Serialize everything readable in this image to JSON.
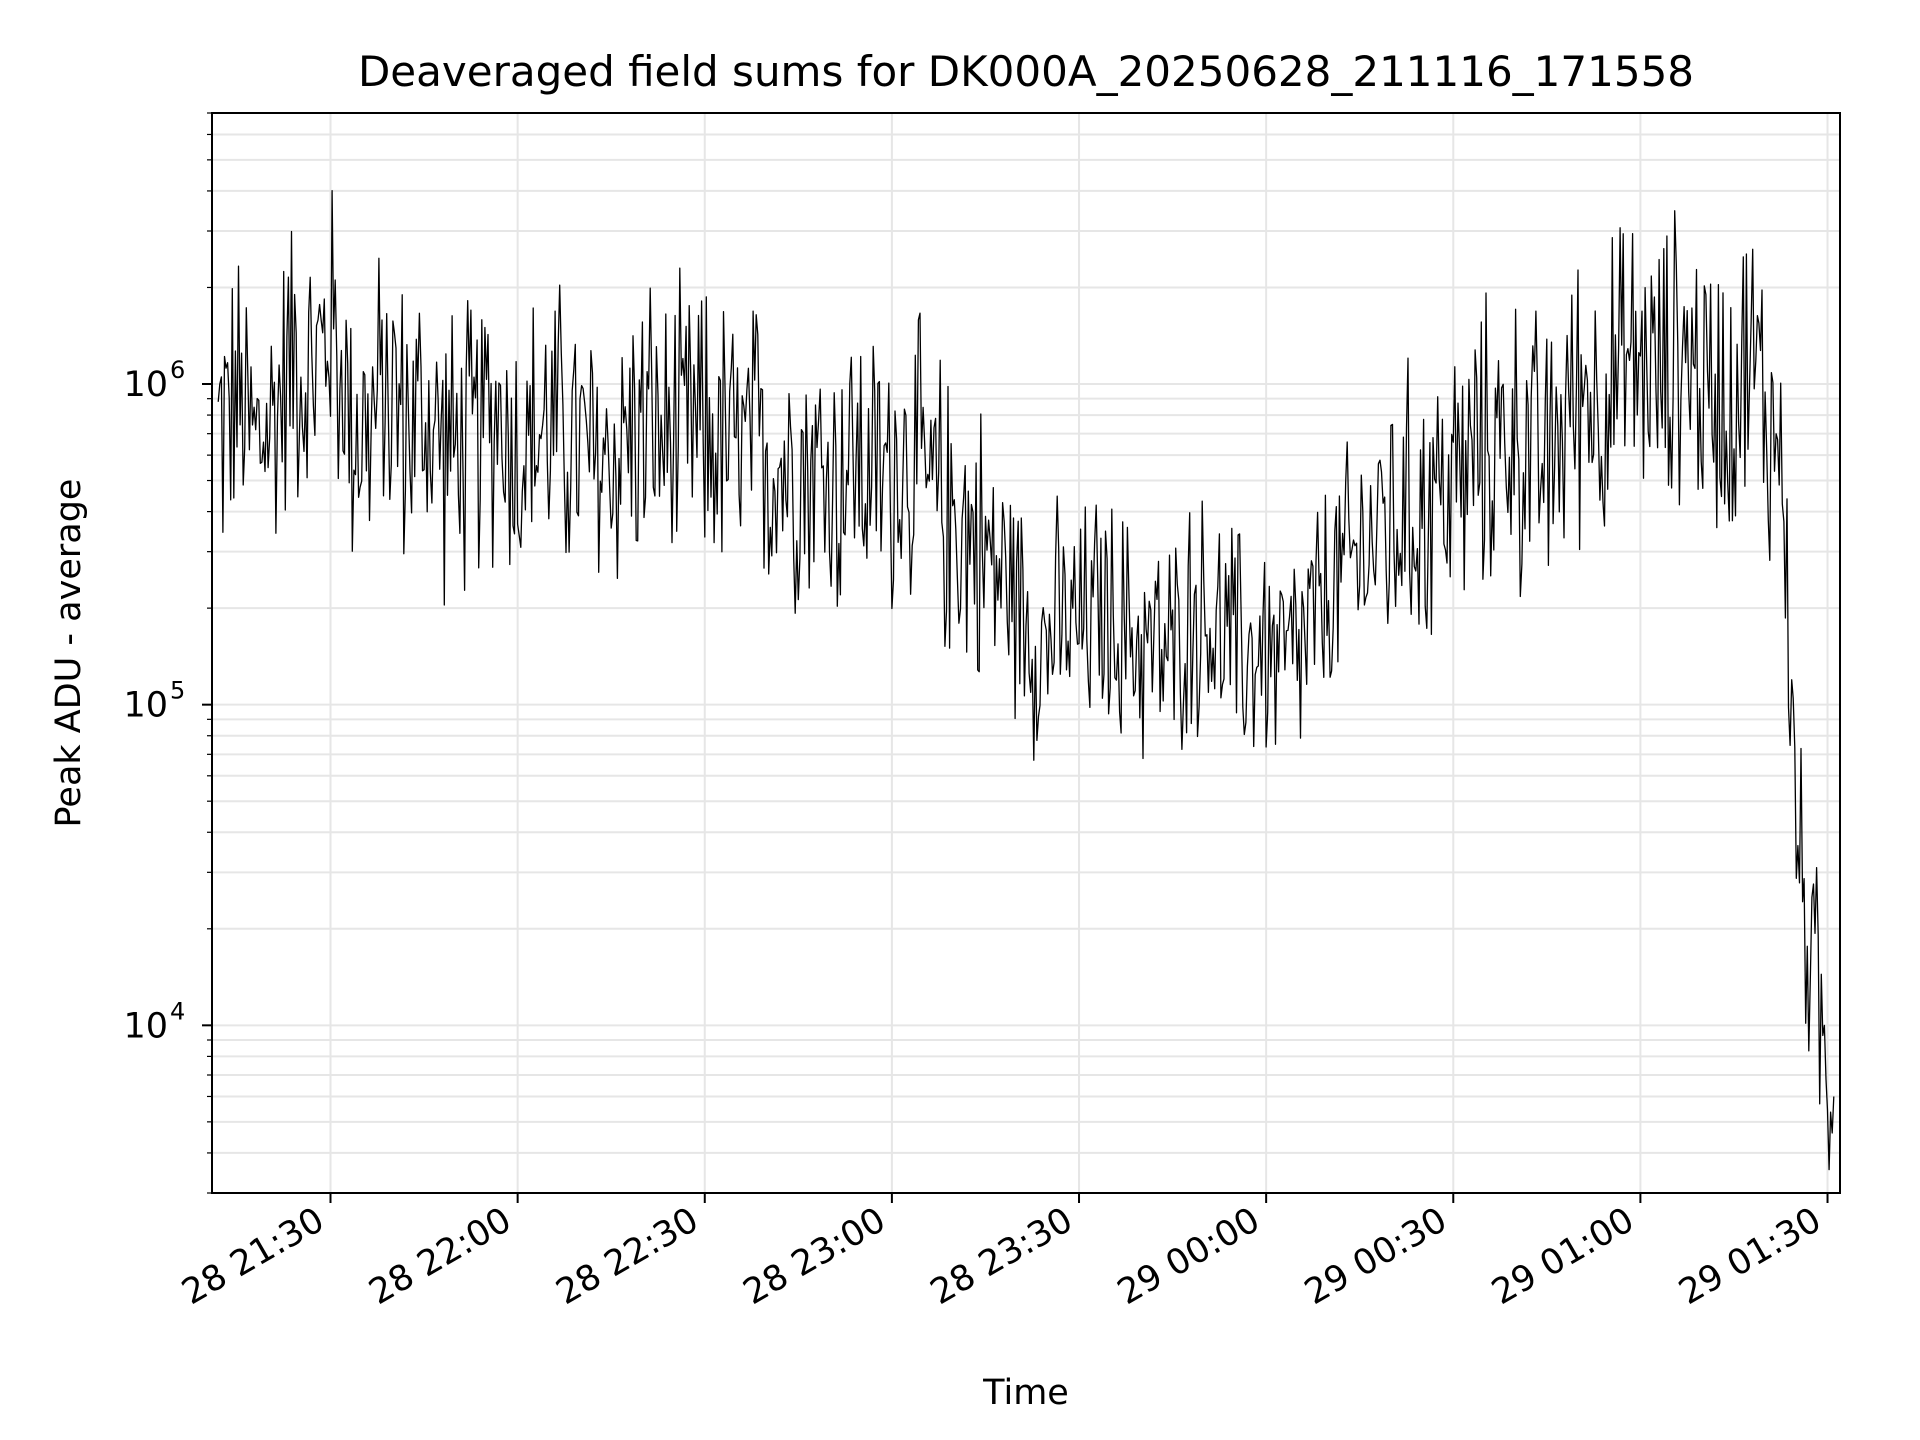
{
  "chart_data": {
    "type": "line",
    "title": "Deaveraged field sums for DK000A_20250628_211116_171558",
    "xlabel": "Time",
    "ylabel": "Peak ADU - average",
    "yscale": "log",
    "ylim": [
      3000,
      7000000
    ],
    "xlim": [
      "2025-06-28 21:11",
      "2025-06-29 01:32"
    ],
    "grid": true,
    "line_color": "#000000",
    "grid_color": "#e6e6e6",
    "x_ticks": [
      {
        "t": "2025-06-28 21:30",
        "label": "28 21:30"
      },
      {
        "t": "2025-06-28 22:00",
        "label": "28 22:00"
      },
      {
        "t": "2025-06-28 22:30",
        "label": "28 22:30"
      },
      {
        "t": "2025-06-28 23:00",
        "label": "28 23:00"
      },
      {
        "t": "2025-06-28 23:30",
        "label": "28 23:30"
      },
      {
        "t": "2025-06-29 00:00",
        "label": "29 00:00"
      },
      {
        "t": "2025-06-29 00:30",
        "label": "29 00:30"
      },
      {
        "t": "2025-06-29 01:00",
        "label": "29 01:00"
      },
      {
        "t": "2025-06-29 01:30",
        "label": "29 01:30"
      }
    ],
    "y_ticks": [
      {
        "value": 10000,
        "base": "10",
        "exp": "4"
      },
      {
        "value": 100000,
        "base": "10",
        "exp": "5"
      },
      {
        "value": 1000000,
        "base": "10",
        "exp": "6"
      }
    ],
    "series": [
      {
        "x": [
          "2025-06-28 21:12",
          "2025-06-28 21:15",
          "2025-06-28 21:18",
          "2025-06-28 21:21",
          "2025-06-28 21:24",
          "2025-06-28 21:27",
          "2025-06-28 21:30",
          "2025-06-28 21:33",
          "2025-06-28 21:36",
          "2025-06-28 21:39",
          "2025-06-28 21:42",
          "2025-06-28 21:45",
          "2025-06-28 21:48",
          "2025-06-28 21:51",
          "2025-06-28 21:54",
          "2025-06-28 21:57",
          "2025-06-28 22:00",
          "2025-06-28 22:03",
          "2025-06-28 22:06",
          "2025-06-28 22:09",
          "2025-06-28 22:12",
          "2025-06-28 22:15",
          "2025-06-28 22:18",
          "2025-06-28 22:21",
          "2025-06-28 22:24",
          "2025-06-28 22:27",
          "2025-06-28 22:30",
          "2025-06-28 22:33",
          "2025-06-28 22:36",
          "2025-06-28 22:39",
          "2025-06-28 22:42",
          "2025-06-28 22:45",
          "2025-06-28 22:48",
          "2025-06-28 22:51",
          "2025-06-28 22:54",
          "2025-06-28 22:57",
          "2025-06-28 23:00",
          "2025-06-28 23:03",
          "2025-06-28 23:06",
          "2025-06-28 23:09",
          "2025-06-28 23:12",
          "2025-06-28 23:15",
          "2025-06-28 23:18",
          "2025-06-28 23:21",
          "2025-06-28 23:24",
          "2025-06-28 23:27",
          "2025-06-28 23:30",
          "2025-06-28 23:33",
          "2025-06-28 23:36",
          "2025-06-28 23:39",
          "2025-06-28 23:42",
          "2025-06-28 23:45",
          "2025-06-28 23:48",
          "2025-06-28 23:51",
          "2025-06-28 23:54",
          "2025-06-28 23:57",
          "2025-06-29 00:00",
          "2025-06-29 00:03",
          "2025-06-29 00:06",
          "2025-06-29 00:09",
          "2025-06-29 00:12",
          "2025-06-29 00:15",
          "2025-06-29 00:18",
          "2025-06-29 00:21",
          "2025-06-29 00:24",
          "2025-06-29 00:27",
          "2025-06-29 00:30",
          "2025-06-29 00:33",
          "2025-06-29 00:36",
          "2025-06-29 00:39",
          "2025-06-29 00:42",
          "2025-06-29 00:45",
          "2025-06-29 00:48",
          "2025-06-29 00:51",
          "2025-06-29 00:54",
          "2025-06-29 00:57",
          "2025-06-29 01:00",
          "2025-06-29 01:03",
          "2025-06-29 01:06",
          "2025-06-29 01:09",
          "2025-06-29 01:12",
          "2025-06-29 01:15",
          "2025-06-29 01:18",
          "2025-06-29 01:21",
          "2025-06-29 01:23",
          "2025-06-29 01:24",
          "2025-06-29 01:25",
          "2025-06-29 01:26",
          "2025-06-29 01:27",
          "2025-06-29 01:28",
          "2025-06-29 01:29",
          "2025-06-29 01:30",
          "2025-06-29 01:31"
        ],
        "y": [
          700000,
          900000,
          650000,
          800000,
          1300000,
          1000000,
          1600000,
          800000,
          700000,
          1000000,
          750000,
          800000,
          650000,
          600000,
          700000,
          850000,
          600000,
          700000,
          750000,
          650000,
          550000,
          600000,
          700000,
          750000,
          650000,
          700000,
          700000,
          650000,
          600000,
          650000,
          550000,
          600000,
          550000,
          500000,
          600000,
          500000,
          550000,
          600000,
          450000,
          400000,
          350000,
          300000,
          250000,
          200000,
          150000,
          180000,
          170000,
          200000,
          180000,
          160000,
          150000,
          140000,
          200000,
          180000,
          160000,
          140000,
          150000,
          130000,
          150000,
          200000,
          250000,
          300000,
          350000,
          380000,
          400000,
          450000,
          500000,
          550000,
          650000,
          700000,
          600000,
          550000,
          800000,
          1000000,
          900000,
          1100000,
          1200000,
          1000000,
          1300000,
          1100000,
          900000,
          1000000,
          1200000,
          700000,
          600000,
          100000,
          50000,
          25000,
          18000,
          15000,
          9000,
          7000,
          6000
        ]
      }
    ]
  }
}
